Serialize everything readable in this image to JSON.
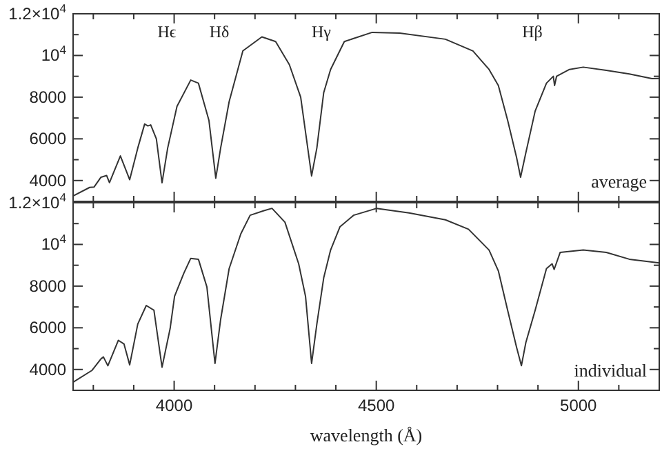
{
  "chart_data": [
    {
      "type": "line",
      "xlim": [
        3750,
        5200
      ],
      "ylim": [
        3000,
        12000
      ],
      "tick_labels": "y",
      "grid": false,
      "xticks": [
        {
          "value": 3800,
          "label": null
        },
        {
          "value": 3900,
          "label": null
        },
        4000,
        {
          "value": 4100,
          "label": null
        },
        {
          "value": 4200,
          "label": null
        },
        {
          "value": 4300,
          "label": null
        },
        {
          "value": 4400,
          "label": null
        },
        4500,
        {
          "value": 4600,
          "label": null
        },
        {
          "value": 4700,
          "label": null
        },
        {
          "value": 4800,
          "label": null
        },
        {
          "value": 4900,
          "label": null
        },
        5000,
        {
          "value": 5100,
          "label": null
        }
      ],
      "yticks": [
        4000,
        {
          "value": 5000,
          "label": null
        },
        6000,
        {
          "value": 7000,
          "label": null
        },
        8000,
        {
          "value": 9000,
          "label": null
        },
        {
          "value": 10000,
          "label": "10$^{4}$"
        },
        {
          "value": 11000,
          "label": null
        },
        {
          "value": 12000,
          "label": "1.2×10$^{4}$"
        }
      ],
      "annotations": [
        "Hϵ",
        "Hδ",
        "Hγ",
        "Hβ",
        "average"
      ],
      "series": [
        {
          "color": "#333333",
          "x": [
            3751,
            3791,
            3802,
            3819,
            3833,
            3840,
            3867,
            3890,
            3910,
            3927,
            3935,
            3942,
            3956,
            3970,
            3984,
            4007,
            4041,
            4060,
            4086,
            4103,
            4115,
            4136,
            4170,
            4217,
            4251,
            4285,
            4313,
            4340,
            4353,
            4370,
            4387,
            4421,
            4490,
            4558,
            4671,
            4739,
            4779,
            4802,
            4825,
            4847,
            4857,
            4870,
            4893,
            4921,
            4938,
            4941,
            4946,
            4978,
            5012,
            5069,
            5126,
            5182,
            5200
          ],
          "values": [
            3270,
            3670,
            3690,
            4160,
            4240,
            3900,
            5180,
            4040,
            5560,
            6710,
            6620,
            6670,
            6000,
            3890,
            5560,
            7560,
            8820,
            8670,
            6890,
            4110,
            5560,
            7780,
            10220,
            10890,
            10670,
            9560,
            8000,
            4220,
            5560,
            8220,
            9330,
            10670,
            11110,
            11070,
            10780,
            10220,
            9330,
            8560,
            6890,
            5110,
            4160,
            5330,
            7330,
            8670,
            9000,
            8560,
            9000,
            9330,
            9440,
            9290,
            9110,
            8890,
            8900
          ]
        }
      ]
    },
    {
      "type": "line",
      "xlim": [
        3750,
        5200
      ],
      "ylim": [
        3000,
        12000
      ],
      "grid": false,
      "xlabel": "wavelength (Å)",
      "xticks": [
        {
          "value": 3800,
          "label": null
        },
        {
          "value": 3900,
          "label": null
        },
        4000,
        {
          "value": 4100,
          "label": null
        },
        {
          "value": 4200,
          "label": null
        },
        {
          "value": 4300,
          "label": null
        },
        {
          "value": 4400,
          "label": null
        },
        4500,
        {
          "value": 4600,
          "label": null
        },
        {
          "value": 4700,
          "label": null
        },
        {
          "value": 4800,
          "label": null
        },
        {
          "value": 4900,
          "label": null
        },
        5000,
        {
          "value": 5100,
          "label": null
        }
      ],
      "yticks": [
        4000,
        {
          "value": 5000,
          "label": null
        },
        6000,
        {
          "value": 7000,
          "label": null
        },
        8000,
        {
          "value": 9000,
          "label": null
        },
        {
          "value": 10000,
          "label": "10$^{4}$"
        },
        {
          "value": 11000,
          "label": null
        },
        {
          "value": 12000,
          "label": "1.2×10$^{4}$"
        }
      ],
      "annotations": [
        "individual"
      ],
      "series": [
        {
          "color": "#333333",
          "x": [
            3751,
            3797,
            3819,
            3825,
            3836,
            3862,
            3876,
            3890,
            3910,
            3931,
            3950,
            3970,
            3990,
            4001,
            4024,
            4041,
            4060,
            4081,
            4101,
            4115,
            4136,
            4165,
            4188,
            4222,
            4242,
            4274,
            4308,
            4325,
            4340,
            4353,
            4370,
            4387,
            4410,
            4444,
            4501,
            4581,
            4671,
            4728,
            4779,
            4802,
            4825,
            4847,
            4859,
            4870,
            4893,
            4921,
            4935,
            4940,
            4955,
            5012,
            5069,
            5126,
            5200
          ],
          "values": [
            3400,
            3960,
            4510,
            4600,
            4180,
            5400,
            5220,
            4220,
            6180,
            7070,
            6840,
            4110,
            5960,
            7510,
            8620,
            9330,
            9290,
            7960,
            4290,
            6400,
            8840,
            10510,
            11400,
            11620,
            11730,
            11070,
            9070,
            7510,
            4290,
            6180,
            8400,
            9730,
            10840,
            11400,
            11730,
            11510,
            11180,
            10730,
            9730,
            8730,
            6840,
            5070,
            4180,
            5290,
            6840,
            8840,
            9070,
            8800,
            9620,
            9730,
            9620,
            9290,
            9110
          ]
        }
      ]
    }
  ]
}
